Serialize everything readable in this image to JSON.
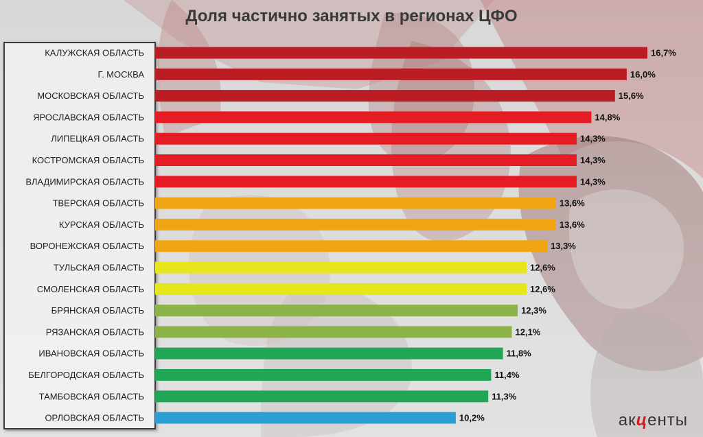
{
  "chart_data": {
    "type": "bar",
    "orientation": "horizontal",
    "title": "Доля частично занятых в регионах ЦФО",
    "categories": [
      "КАЛУЖСКАЯ ОБЛАСТЬ",
      "Г. МОСКВА",
      "МОСКОВСКАЯ ОБЛАСТЬ",
      "ЯРОСЛАВСКАЯ ОБЛАСТЬ",
      "ЛИПЕЦКАЯ ОБЛАСТЬ",
      "КОСТРОМСКАЯ ОБЛАСТЬ",
      "ВЛАДИМИРСКАЯ ОБЛАСТЬ",
      "ТВЕРСКАЯ ОБЛАСТЬ",
      "КУРСКАЯ ОБЛАСТЬ",
      "ВОРОНЕЖСКАЯ ОБЛАСТЬ",
      "ТУЛЬСКАЯ ОБЛАСТЬ",
      "СМОЛЕНСКАЯ ОБЛАСТЬ",
      "БРЯНСКАЯ ОБЛАСТЬ",
      "РЯЗАНСКАЯ ОБЛАСТЬ",
      "ИВАНОВСКАЯ ОБЛАСТЬ",
      "БЕЛГОРОДСКАЯ ОБЛАСТЬ",
      "ТАМБОВСКАЯ ОБЛАСТЬ",
      "ОРЛОВСКАЯ ОБЛАСТЬ"
    ],
    "values": [
      16.7,
      16.0,
      15.6,
      14.8,
      14.3,
      14.3,
      14.3,
      13.6,
      13.6,
      13.3,
      12.6,
      12.6,
      12.3,
      12.1,
      11.8,
      11.4,
      11.3,
      10.2
    ],
    "value_labels": [
      "16,7%",
      "16,0%",
      "15,6%",
      "14,8%",
      "14,3%",
      "14,3%",
      "14,3%",
      "13,6%",
      "13,6%",
      "13,3%",
      "12,6%",
      "12,6%",
      "12,3%",
      "12,1%",
      "11,8%",
      "11,4%",
      "11,3%",
      "10,2%"
    ],
    "colors": [
      "#bb1d24",
      "#bb1d24",
      "#bb1d24",
      "#e51c23",
      "#e51c23",
      "#e51c23",
      "#e51c23",
      "#f0a614",
      "#f0a614",
      "#f0a614",
      "#e6e61a",
      "#e6e61a",
      "#8cb34a",
      "#8cb34a",
      "#21a656",
      "#21a656",
      "#21a656",
      "#2b9fd4"
    ],
    "xlim": [
      0,
      16.7
    ],
    "grid": false,
    "legend": "none"
  },
  "logo": {
    "before": "ак",
    "mid": "ц",
    "after": "енты"
  }
}
